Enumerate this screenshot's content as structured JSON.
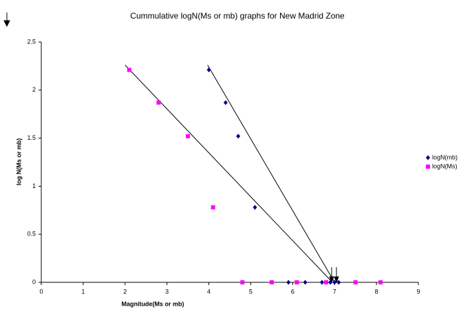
{
  "chart_data": {
    "type": "scatter",
    "title": "Cummulative logN(Ms or mb) graphs for New Madrid Zone",
    "x_label": "Magnitude(Ms or mb)",
    "y_label": "log N(Ms or mb)",
    "xlim": [
      0,
      9
    ],
    "xticks": [
      0,
      1,
      2,
      3,
      4,
      5,
      6,
      7,
      8,
      9
    ],
    "ylim": [
      0,
      2.5
    ],
    "yticks": [
      0,
      0.5,
      1,
      1.5,
      2,
      2.5
    ],
    "grid": false,
    "legend": "right",
    "series": [
      {
        "name": "logN(mb)",
        "color": "#000080",
        "marker": "diamond",
        "x": [
          4.0,
          4.4,
          4.7,
          5.1,
          5.9,
          6.3,
          6.7,
          6.9,
          7.0,
          7.1
        ],
        "values": [
          2.21,
          1.87,
          1.52,
          0.78,
          0,
          0,
          0,
          0,
          0,
          0
        ]
      },
      {
        "name": "logN(Ms)",
        "color": "#ff00ff",
        "marker": "square",
        "x": [
          2.1,
          2.8,
          3.5,
          4.1,
          4.8,
          5.5,
          6.1,
          6.8,
          7.5,
          8.1
        ],
        "values": [
          2.21,
          1.87,
          1.52,
          0.78,
          0,
          0,
          0,
          0,
          0,
          0
        ]
      }
    ],
    "trendlines": [
      {
        "x": [
          3.97,
          7.0
        ],
        "y": [
          2.26,
          0
        ]
      },
      {
        "x": [
          2.0,
          6.95
        ],
        "y": [
          2.26,
          0
        ]
      }
    ]
  }
}
